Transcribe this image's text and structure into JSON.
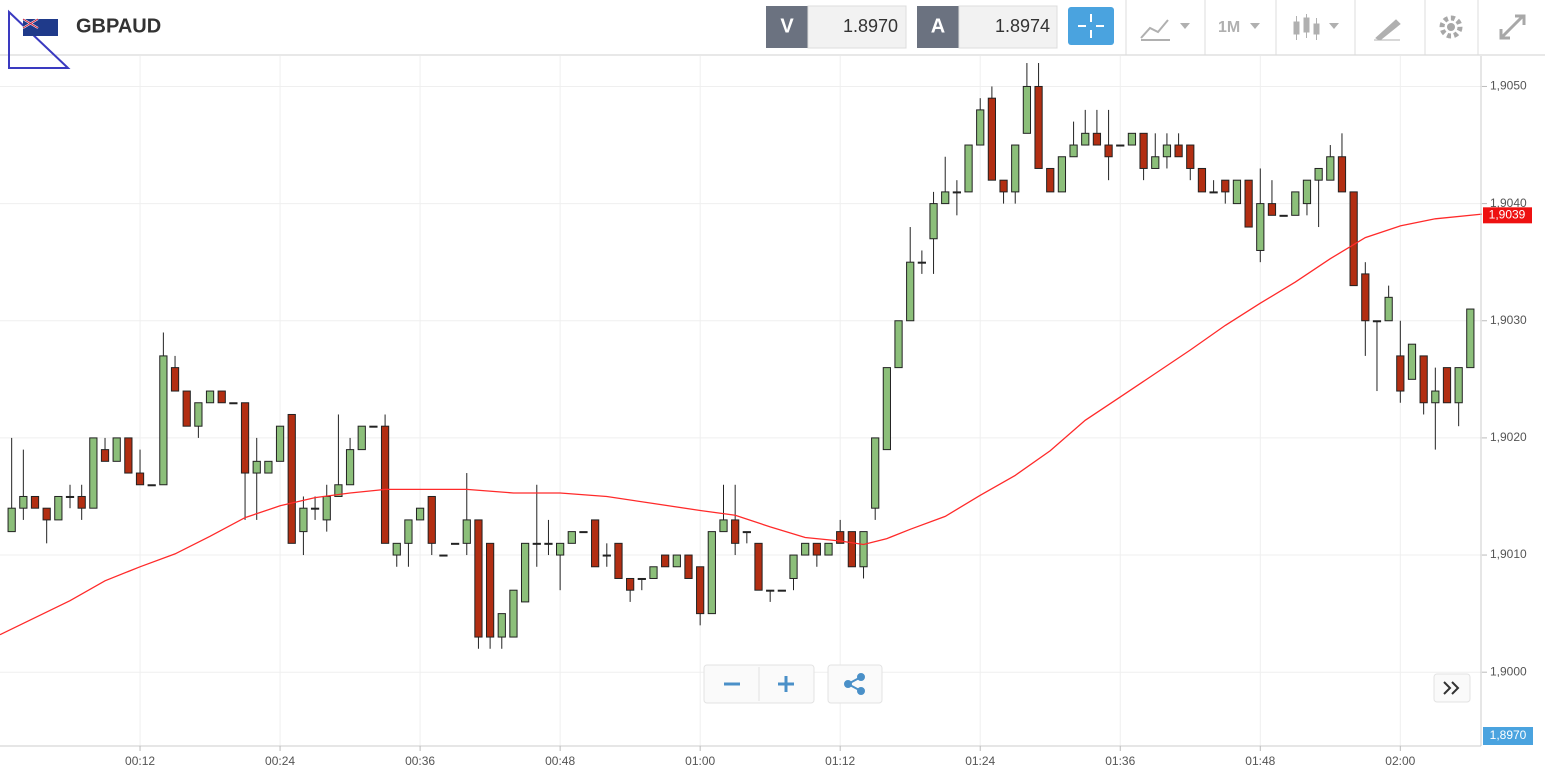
{
  "header": {
    "symbol": "GBPAUD",
    "sell_label": "V",
    "sell_price": "1.8970",
    "buy_label": "A",
    "buy_price": "1.8974",
    "timeframe": "1M"
  },
  "chart_data": {
    "type": "candlestick",
    "up_color": "#8cbf7a",
    "down_color": "#b22e12",
    "x": [
      "00:01",
      "00:02",
      "00:03",
      "00:04",
      "00:05",
      "00:06",
      "00:07",
      "00:08",
      "00:09",
      "00:10",
      "00:11",
      "00:12",
      "00:13",
      "00:14",
      "00:15",
      "00:16",
      "00:17",
      "00:18",
      "00:19",
      "00:20",
      "00:21",
      "00:22",
      "00:23",
      "00:24",
      "00:25",
      "00:26",
      "00:27",
      "00:28",
      "00:29",
      "00:30",
      "00:31",
      "00:32",
      "00:33",
      "00:34",
      "00:35",
      "00:36",
      "00:37",
      "00:38",
      "00:39",
      "00:40",
      "00:41",
      "00:42",
      "00:43",
      "00:44",
      "00:45",
      "00:46",
      "00:47",
      "00:48",
      "00:49",
      "00:50",
      "00:51",
      "00:52",
      "00:53",
      "00:54",
      "00:55",
      "00:56",
      "00:57",
      "00:58",
      "00:59",
      "01:00",
      "01:01",
      "01:02",
      "01:03",
      "01:04",
      "01:05",
      "01:06",
      "01:07",
      "01:08",
      "01:09",
      "01:10",
      "01:11",
      "01:12",
      "01:13",
      "01:14",
      "01:15",
      "01:16",
      "01:17",
      "01:18",
      "01:19",
      "01:20",
      "01:21",
      "01:22",
      "01:23",
      "01:24",
      "01:25",
      "01:26",
      "01:27",
      "01:28",
      "01:29",
      "01:30",
      "01:31",
      "01:32",
      "01:33",
      "01:34",
      "01:35",
      "01:36",
      "01:37",
      "01:38",
      "01:39",
      "01:40",
      "01:41",
      "01:42",
      "01:43",
      "01:44",
      "01:45",
      "01:46",
      "01:47",
      "01:48",
      "01:49",
      "01:50",
      "01:51",
      "01:52",
      "01:53",
      "01:54",
      "01:55",
      "01:56",
      "01:57",
      "01:58",
      "01:59",
      "02:00",
      "02:01",
      "02:02",
      "02:03",
      "02:04",
      "02:05",
      "02:06"
    ],
    "ohlc": [
      [
        1.9012,
        1.902,
        1.9012,
        1.9014
      ],
      [
        1.9014,
        1.9019,
        1.9013,
        1.9015
      ],
      [
        1.9015,
        1.9015,
        1.9014,
        1.9014
      ],
      [
        1.9014,
        1.9014,
        1.9011,
        1.9013
      ],
      [
        1.9013,
        1.9015,
        1.9013,
        1.9015
      ],
      [
        1.9015,
        1.9016,
        1.9014,
        1.9015
      ],
      [
        1.9015,
        1.9016,
        1.9013,
        1.9014
      ],
      [
        1.9014,
        1.902,
        1.9014,
        1.902
      ],
      [
        1.9019,
        1.902,
        1.9018,
        1.9018
      ],
      [
        1.9018,
        1.902,
        1.9018,
        1.902
      ],
      [
        1.902,
        1.902,
        1.9017,
        1.9017
      ],
      [
        1.9017,
        1.9019,
        1.9016,
        1.9016
      ],
      [
        1.9016,
        1.9016,
        1.9016,
        1.9016
      ],
      [
        1.9016,
        1.9029,
        1.9016,
        1.9027
      ],
      [
        1.9026,
        1.9027,
        1.9024,
        1.9024
      ],
      [
        1.9024,
        1.9024,
        1.9021,
        1.9021
      ],
      [
        1.9021,
        1.9023,
        1.902,
        1.9023
      ],
      [
        1.9023,
        1.9024,
        1.9023,
        1.9024
      ],
      [
        1.9024,
        1.9024,
        1.9023,
        1.9023
      ],
      [
        1.9023,
        1.9023,
        1.9023,
        1.9023
      ],
      [
        1.9023,
        1.9023,
        1.9013,
        1.9017
      ],
      [
        1.9017,
        1.902,
        1.9013,
        1.9018
      ],
      [
        1.9017,
        1.9018,
        1.9017,
        1.9018
      ],
      [
        1.9018,
        1.9021,
        1.9018,
        1.9021
      ],
      [
        1.9022,
        1.9022,
        1.9011,
        1.9011
      ],
      [
        1.9012,
        1.9015,
        1.901,
        1.9014
      ],
      [
        1.9014,
        1.9015,
        1.9013,
        1.9014
      ],
      [
        1.9013,
        1.9016,
        1.9012,
        1.9015
      ],
      [
        1.9015,
        1.9022,
        1.9015,
        1.9016
      ],
      [
        1.9016,
        1.902,
        1.9016,
        1.9019
      ],
      [
        1.9019,
        1.9021,
        1.9019,
        1.9021
      ],
      [
        1.9021,
        1.9021,
        1.9021,
        1.9021
      ],
      [
        1.9021,
        1.9022,
        1.9011,
        1.9011
      ],
      [
        1.901,
        1.9011,
        1.9009,
        1.9011
      ],
      [
        1.9011,
        1.9013,
        1.9009,
        1.9013
      ],
      [
        1.9013,
        1.9014,
        1.9013,
        1.9014
      ],
      [
        1.9015,
        1.9015,
        1.901,
        1.9011
      ],
      [
        1.901,
        1.901,
        1.901,
        1.901
      ],
      [
        1.9011,
        1.9011,
        1.9011,
        1.9011
      ],
      [
        1.9011,
        1.9017,
        1.901,
        1.9013
      ],
      [
        1.9013,
        1.9013,
        1.9002,
        1.9003
      ],
      [
        1.9011,
        1.9011,
        1.9002,
        1.9003
      ],
      [
        1.9003,
        1.9005,
        1.9002,
        1.9005
      ],
      [
        1.9003,
        1.9007,
        1.9003,
        1.9007
      ],
      [
        1.9006,
        1.9011,
        1.9006,
        1.9011
      ],
      [
        1.9011,
        1.9016,
        1.9009,
        1.9011
      ],
      [
        1.9011,
        1.9013,
        1.901,
        1.9011
      ],
      [
        1.901,
        1.9011,
        1.9007,
        1.9011
      ],
      [
        1.9011,
        1.9012,
        1.9011,
        1.9012
      ],
      [
        1.9012,
        1.9012,
        1.9012,
        1.9012
      ],
      [
        1.9013,
        1.9013,
        1.9009,
        1.9009
      ],
      [
        1.901,
        1.9011,
        1.9009,
        1.901
      ],
      [
        1.9011,
        1.9011,
        1.9008,
        1.9008
      ],
      [
        1.9008,
        1.9008,
        1.9006,
        1.9007
      ],
      [
        1.9008,
        1.9008,
        1.9007,
        1.9008
      ],
      [
        1.9008,
        1.9009,
        1.9008,
        1.9009
      ],
      [
        1.901,
        1.901,
        1.9009,
        1.9009
      ],
      [
        1.9009,
        1.901,
        1.9009,
        1.901
      ],
      [
        1.901,
        1.901,
        1.9008,
        1.9008
      ],
      [
        1.9009,
        1.9009,
        1.9004,
        1.9005
      ],
      [
        1.9005,
        1.9012,
        1.9005,
        1.9012
      ],
      [
        1.9012,
        1.9016,
        1.9012,
        1.9013
      ],
      [
        1.9013,
        1.9016,
        1.901,
        1.9011
      ],
      [
        1.9012,
        1.9012,
        1.9011,
        1.9012
      ],
      [
        1.9011,
        1.9011,
        1.9007,
        1.9007
      ],
      [
        1.9007,
        1.9007,
        1.9006,
        1.9007
      ],
      [
        1.9007,
        1.9007,
        1.9007,
        1.9007
      ],
      [
        1.9008,
        1.901,
        1.9007,
        1.901
      ],
      [
        1.901,
        1.9011,
        1.901,
        1.9011
      ],
      [
        1.9011,
        1.9011,
        1.9009,
        1.901
      ],
      [
        1.901,
        1.9011,
        1.901,
        1.9011
      ],
      [
        1.9012,
        1.9013,
        1.9011,
        1.9011
      ],
      [
        1.9012,
        1.9012,
        1.9009,
        1.9009
      ],
      [
        1.9009,
        1.9012,
        1.9008,
        1.9012
      ],
      [
        1.9014,
        1.902,
        1.9013,
        1.902
      ],
      [
        1.9019,
        1.9026,
        1.9019,
        1.9026
      ],
      [
        1.9026,
        1.903,
        1.9026,
        1.903
      ],
      [
        1.903,
        1.9038,
        1.903,
        1.9035
      ],
      [
        1.9035,
        1.9036,
        1.9034,
        1.9035
      ],
      [
        1.9037,
        1.9041,
        1.9034,
        1.904
      ],
      [
        1.904,
        1.9044,
        1.904,
        1.9041
      ],
      [
        1.9041,
        1.9042,
        1.9039,
        1.9041
      ],
      [
        1.9041,
        1.9045,
        1.9041,
        1.9045
      ],
      [
        1.9045,
        1.9049,
        1.9045,
        1.9048
      ],
      [
        1.9049,
        1.905,
        1.9042,
        1.9042
      ],
      [
        1.9042,
        1.9042,
        1.904,
        1.9041
      ],
      [
        1.9041,
        1.9045,
        1.904,
        1.9045
      ],
      [
        1.9046,
        1.9052,
        1.9046,
        1.905
      ],
      [
        1.905,
        1.9052,
        1.9043,
        1.9043
      ],
      [
        1.9043,
        1.9043,
        1.9041,
        1.9041
      ],
      [
        1.9041,
        1.9044,
        1.9041,
        1.9044
      ],
      [
        1.9044,
        1.9047,
        1.9044,
        1.9045
      ],
      [
        1.9045,
        1.9048,
        1.9045,
        1.9046
      ],
      [
        1.9046,
        1.9048,
        1.9045,
        1.9045
      ],
      [
        1.9045,
        1.9048,
        1.9042,
        1.9044
      ],
      [
        1.9045,
        1.9045,
        1.9045,
        1.9045
      ],
      [
        1.9045,
        1.9046,
        1.9045,
        1.9046
      ],
      [
        1.9046,
        1.9046,
        1.9042,
        1.9043
      ],
      [
        1.9043,
        1.9046,
        1.9043,
        1.9044
      ],
      [
        1.9044,
        1.9046,
        1.9043,
        1.9045
      ],
      [
        1.9045,
        1.9046,
        1.9044,
        1.9044
      ],
      [
        1.9045,
        1.9045,
        1.9042,
        1.9043
      ],
      [
        1.9043,
        1.9043,
        1.9041,
        1.9041
      ],
      [
        1.9041,
        1.9042,
        1.9041,
        1.9041
      ],
      [
        1.9042,
        1.9042,
        1.904,
        1.9041
      ],
      [
        1.904,
        1.9042,
        1.904,
        1.9042
      ],
      [
        1.9042,
        1.9042,
        1.9038,
        1.9038
      ],
      [
        1.9036,
        1.9043,
        1.9035,
        1.904
      ],
      [
        1.904,
        1.9042,
        1.9039,
        1.9039
      ],
      [
        1.9039,
        1.9039,
        1.9039,
        1.9039
      ],
      [
        1.9039,
        1.9041,
        1.9039,
        1.9041
      ],
      [
        1.904,
        1.9042,
        1.9039,
        1.9042
      ],
      [
        1.9042,
        1.9043,
        1.9038,
        1.9043
      ],
      [
        1.9042,
        1.9045,
        1.9042,
        1.9044
      ],
      [
        1.9044,
        1.9046,
        1.9041,
        1.9041
      ],
      [
        1.9041,
        1.9041,
        1.9033,
        1.9033
      ],
      [
        1.9034,
        1.9035,
        1.9027,
        1.903
      ],
      [
        1.903,
        1.903,
        1.9024,
        1.903
      ],
      [
        1.903,
        1.9033,
        1.903,
        1.9032
      ],
      [
        1.9027,
        1.903,
        1.9023,
        1.9024
      ],
      [
        1.9025,
        1.9028,
        1.9025,
        1.9028
      ],
      [
        1.9027,
        1.9027,
        1.9022,
        1.9023
      ],
      [
        1.9023,
        1.9026,
        1.9019,
        1.9024
      ],
      [
        1.9026,
        1.9026,
        1.9023,
        1.9023
      ],
      [
        1.9023,
        1.9026,
        1.9021,
        1.9026
      ],
      [
        1.9026,
        1.9031,
        1.9026,
        1.9031
      ]
    ],
    "ma": {
      "color": "#ff2a2a",
      "x": [
        "00:00",
        "00:06",
        "00:09",
        "00:12",
        "00:15",
        "00:18",
        "00:21",
        "00:24",
        "00:27",
        "00:30",
        "00:33",
        "00:36",
        "00:40",
        "00:44",
        "00:48",
        "00:52",
        "00:56",
        "01:00",
        "01:03",
        "01:06",
        "01:09",
        "01:12",
        "01:14",
        "01:16",
        "01:18",
        "01:21",
        "01:24",
        "01:27",
        "01:30",
        "01:33",
        "01:36",
        "01:39",
        "01:42",
        "01:45",
        "01:48",
        "01:51",
        "01:54",
        "01:57",
        "02:00",
        "02:03",
        "02:07"
      ],
      "values": [
        1.90032,
        1.90061,
        1.90078,
        1.9009,
        1.90101,
        1.90116,
        1.90132,
        1.90142,
        1.90149,
        1.90153,
        1.90156,
        1.90156,
        1.90156,
        1.90153,
        1.90153,
        1.9015,
        1.90144,
        1.90138,
        1.90134,
        1.90124,
        1.90115,
        1.90112,
        1.90109,
        1.90114,
        1.90122,
        1.90133,
        1.90151,
        1.90168,
        1.90189,
        1.90215,
        1.90235,
        1.90255,
        1.90275,
        1.90296,
        1.90315,
        1.90333,
        1.90353,
        1.90371,
        1.90381,
        1.90387,
        1.90391
      ]
    },
    "last_label": {
      "value": 1.9039,
      "label": "1,9039"
    },
    "bid_badge": "1,8970",
    "xlim": [
      "00:00",
      "02:07"
    ],
    "xticks": [
      "00:12",
      "00:24",
      "00:36",
      "00:48",
      "01:00",
      "01:12",
      "01:24",
      "01:36",
      "01:48",
      "02:00"
    ],
    "ylim": [
      1.89937,
      1.90526
    ],
    "yticks": [
      {
        "value": 1.9,
        "label": "1,9000"
      },
      {
        "value": 1.901,
        "label": "1,9010"
      },
      {
        "value": 1.902,
        "label": "1,9020"
      },
      {
        "value": 1.903,
        "label": "1,9030"
      },
      {
        "value": 1.904,
        "label": "1,9040"
      },
      {
        "value": 1.905,
        "label": "1,9050"
      }
    ],
    "grid": true
  }
}
